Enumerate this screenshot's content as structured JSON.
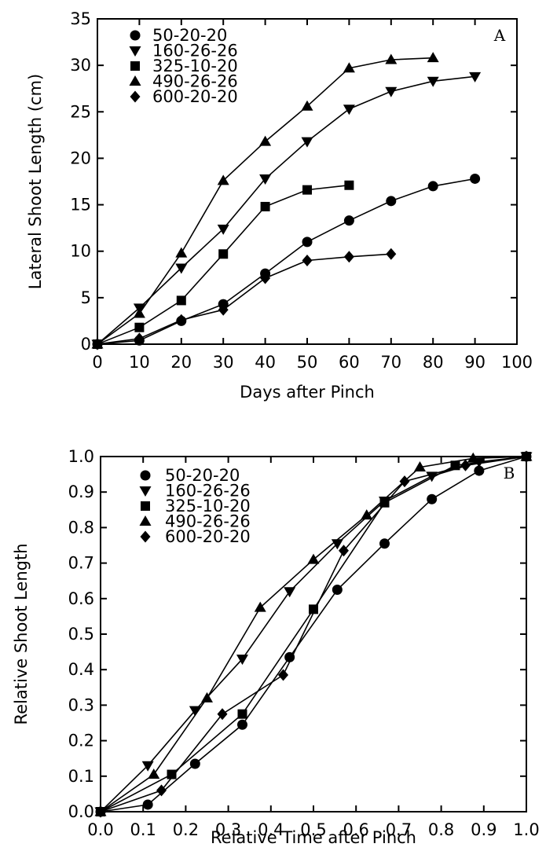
{
  "chart_data": [
    {
      "type": "line",
      "panel_label": "A",
      "xlabel": "Days after Pinch",
      "ylabel": "Lateral Shoot Length (cm)",
      "xlim": [
        0,
        100
      ],
      "ylim": [
        0,
        35
      ],
      "xticks": [
        "0",
        "10",
        "20",
        "30",
        "40",
        "50",
        "60",
        "70",
        "80",
        "90",
        "100"
      ],
      "yticks": [
        "0",
        "5",
        "10",
        "15",
        "20",
        "25",
        "30",
        "35"
      ],
      "legend_position": "top-left",
      "series": [
        {
          "name": "50-20-20",
          "marker": "circle",
          "x": [
            0,
            10,
            20,
            30,
            40,
            50,
            60,
            70,
            80,
            90
          ],
          "y": [
            0,
            0.4,
            2.5,
            4.3,
            7.6,
            11.0,
            13.3,
            15.4,
            17.0,
            17.8
          ]
        },
        {
          "name": "160-26-26",
          "marker": "triangle-down",
          "x": [
            0,
            10,
            20,
            30,
            40,
            50,
            60,
            70,
            80,
            90
          ],
          "y": [
            0,
            3.9,
            8.2,
            12.4,
            17.8,
            21.8,
            25.3,
            27.2,
            28.3,
            28.8
          ]
        },
        {
          "name": "325-10-20",
          "marker": "square",
          "x": [
            0,
            10,
            20,
            30,
            40,
            50,
            60
          ],
          "y": [
            0,
            1.8,
            4.7,
            9.7,
            14.8,
            16.6,
            17.1
          ]
        },
        {
          "name": "490-26-26",
          "marker": "triangle-up",
          "x": [
            0,
            10,
            20,
            30,
            40,
            50,
            60,
            70,
            80
          ],
          "y": [
            0,
            3.3,
            9.8,
            17.6,
            21.8,
            25.6,
            29.7,
            30.6,
            30.8
          ]
        },
        {
          "name": "600-20-20",
          "marker": "diamond",
          "x": [
            0,
            10,
            20,
            30,
            40,
            50,
            60,
            70
          ],
          "y": [
            0,
            0.6,
            2.6,
            3.7,
            7.1,
            9.0,
            9.4,
            9.7
          ]
        }
      ]
    },
    {
      "type": "line",
      "panel_label": "B",
      "xlabel": "Relative Time after Pinch",
      "ylabel": "Relative Shoot Length",
      "xlim": [
        0,
        1
      ],
      "ylim": [
        0,
        1
      ],
      "xticks": [
        "0.0",
        "0.1",
        "0.2",
        "0.3",
        "0.4",
        "0.5",
        "0.6",
        "0.7",
        "0.8",
        "0.9",
        "1.0"
      ],
      "yticks": [
        "0.0",
        "0.1",
        "0.2",
        "0.3",
        "0.4",
        "0.5",
        "0.6",
        "0.7",
        "0.8",
        "0.9",
        "1.0"
      ],
      "legend_position": "top-left",
      "series": [
        {
          "name": "50-20-20",
          "marker": "circle",
          "x": [
            0,
            0.111,
            0.222,
            0.333,
            0.444,
            0.556,
            0.667,
            0.778,
            0.889,
            1.0
          ],
          "y": [
            0,
            0.02,
            0.135,
            0.245,
            0.435,
            0.625,
            0.755,
            0.88,
            0.96,
            1.0
          ]
        },
        {
          "name": "160-26-26",
          "marker": "triangle-down",
          "x": [
            0,
            0.111,
            0.222,
            0.333,
            0.444,
            0.556,
            0.667,
            0.778,
            0.889,
            1.0
          ],
          "y": [
            0,
            0.13,
            0.285,
            0.43,
            0.62,
            0.755,
            0.875,
            0.945,
            0.985,
            1.0
          ]
        },
        {
          "name": "325-10-20",
          "marker": "square",
          "x": [
            0,
            0.167,
            0.333,
            0.5,
            0.667,
            0.833,
            1.0
          ],
          "y": [
            0,
            0.105,
            0.275,
            0.57,
            0.87,
            0.975,
            1.0
          ]
        },
        {
          "name": "490-26-26",
          "marker": "triangle-up",
          "x": [
            0,
            0.125,
            0.25,
            0.375,
            0.5,
            0.625,
            0.75,
            0.875,
            1.0
          ],
          "y": [
            0,
            0.105,
            0.32,
            0.575,
            0.71,
            0.835,
            0.97,
            0.995,
            1.0
          ]
        },
        {
          "name": "600-20-20",
          "marker": "diamond",
          "x": [
            0,
            0.143,
            0.286,
            0.429,
            0.571,
            0.714,
            0.857,
            1.0
          ],
          "y": [
            0,
            0.06,
            0.275,
            0.385,
            0.735,
            0.93,
            0.975,
            1.0
          ]
        }
      ]
    }
  ]
}
